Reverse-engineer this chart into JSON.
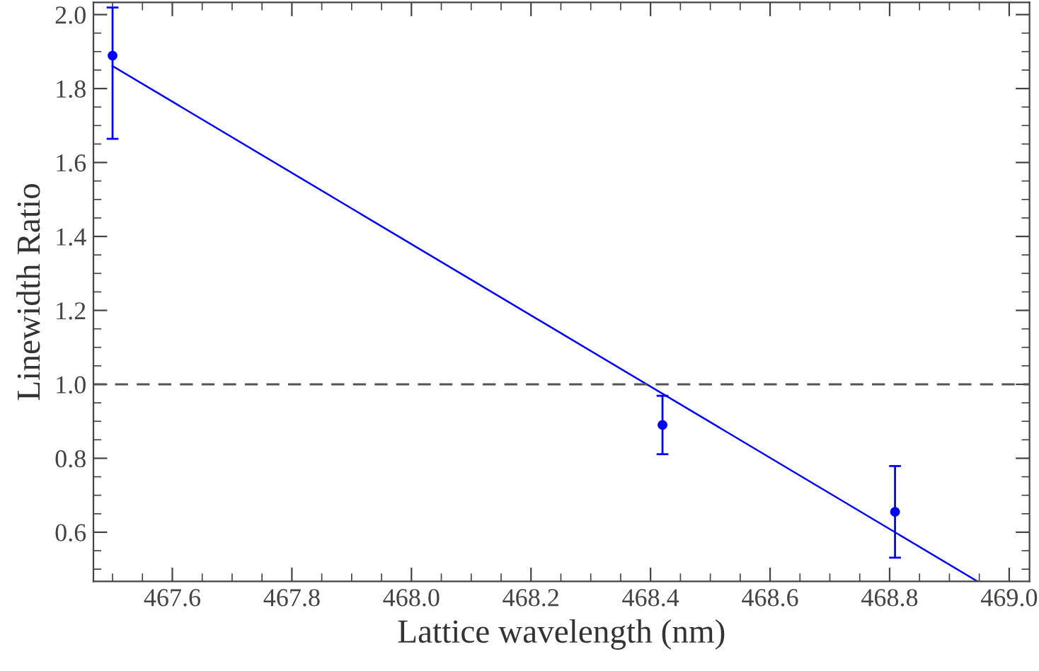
{
  "chart_data": {
    "type": "scatter",
    "xlabel": "Lattice wavelength (nm)",
    "ylabel": "Linewidth Ratio",
    "xlim": [
      467.468,
      469.034
    ],
    "ylim": [
      0.467,
      2.033
    ],
    "xticks": [
      467.6,
      467.8,
      {
        "value": 468,
        "label": "468.0"
      },
      468.2,
      468.4,
      468.6,
      468.8,
      {
        "value": 469,
        "label": "469.0"
      }
    ],
    "yticks": [
      0.6,
      0.8,
      {
        "value": 1,
        "label": "1.0"
      },
      1.2,
      1.4,
      1.6,
      1.8,
      {
        "value": 2,
        "label": "2.0"
      }
    ],
    "series": [
      {
        "color": "#0000ff",
        "x": [
          467.5,
          468.42,
          468.809
        ],
        "values": [
          1.889,
          0.89,
          0.655
        ],
        "errors": [
          [
            1.664,
            2.019
          ],
          0.079,
          0.124
        ],
        "marker": "circle"
      },
      {
        "type": "line",
        "color": "#0000ff",
        "x": [
          467.5,
          468.947
        ],
        "values": [
          1.861,
          0.467
        ],
        "line_style": "solid"
      }
    ],
    "ref_lines": [
      {
        "axis": "y",
        "value": 1.0,
        "label": null,
        "color": "#555555",
        "line_style": "dashed"
      }
    ],
    "grid": false,
    "legend": false
  }
}
